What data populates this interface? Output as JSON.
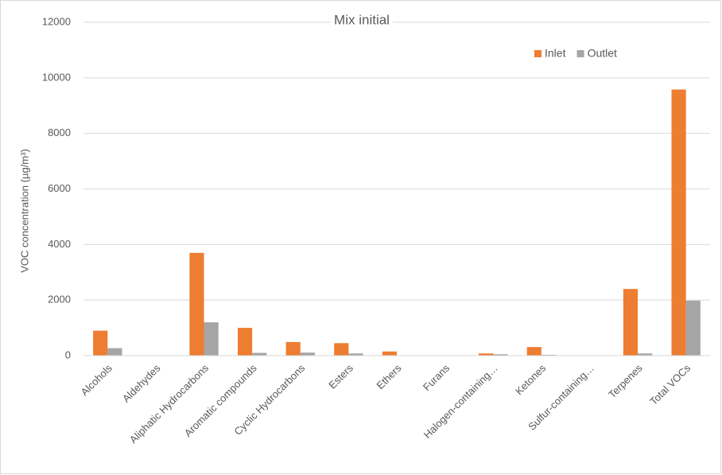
{
  "chart_data": {
    "type": "bar",
    "title": "Mix initial",
    "y_label": "VOC concentration (µg/m³)",
    "categories": [
      "Alcohols",
      "Aldehydes",
      "Aliphatic Hydrocarbons",
      "Aromatic compounds",
      "Cyclic Hydrocarbons",
      "Esters",
      "Ethers",
      "Furans",
      "Halogen-containing…",
      "Ketones",
      "Sulfur-containing…",
      "Terpenes",
      "Total VOCs"
    ],
    "series": [
      {
        "name": "Inlet",
        "color": "#ed7d31",
        "values": [
          900,
          0,
          3700,
          1000,
          490,
          450,
          150,
          0,
          80,
          310,
          0,
          2400,
          9580
        ]
      },
      {
        "name": "Outlet",
        "color": "#a5a5a5",
        "values": [
          270,
          0,
          1200,
          100,
          110,
          80,
          10,
          0,
          50,
          30,
          0,
          80,
          1980
        ]
      }
    ],
    "ylim": [
      0,
      12000
    ],
    "yticks": [
      0,
      2000,
      4000,
      6000,
      8000,
      10000,
      12000
    ],
    "grid": true,
    "legend": "top-right"
  }
}
